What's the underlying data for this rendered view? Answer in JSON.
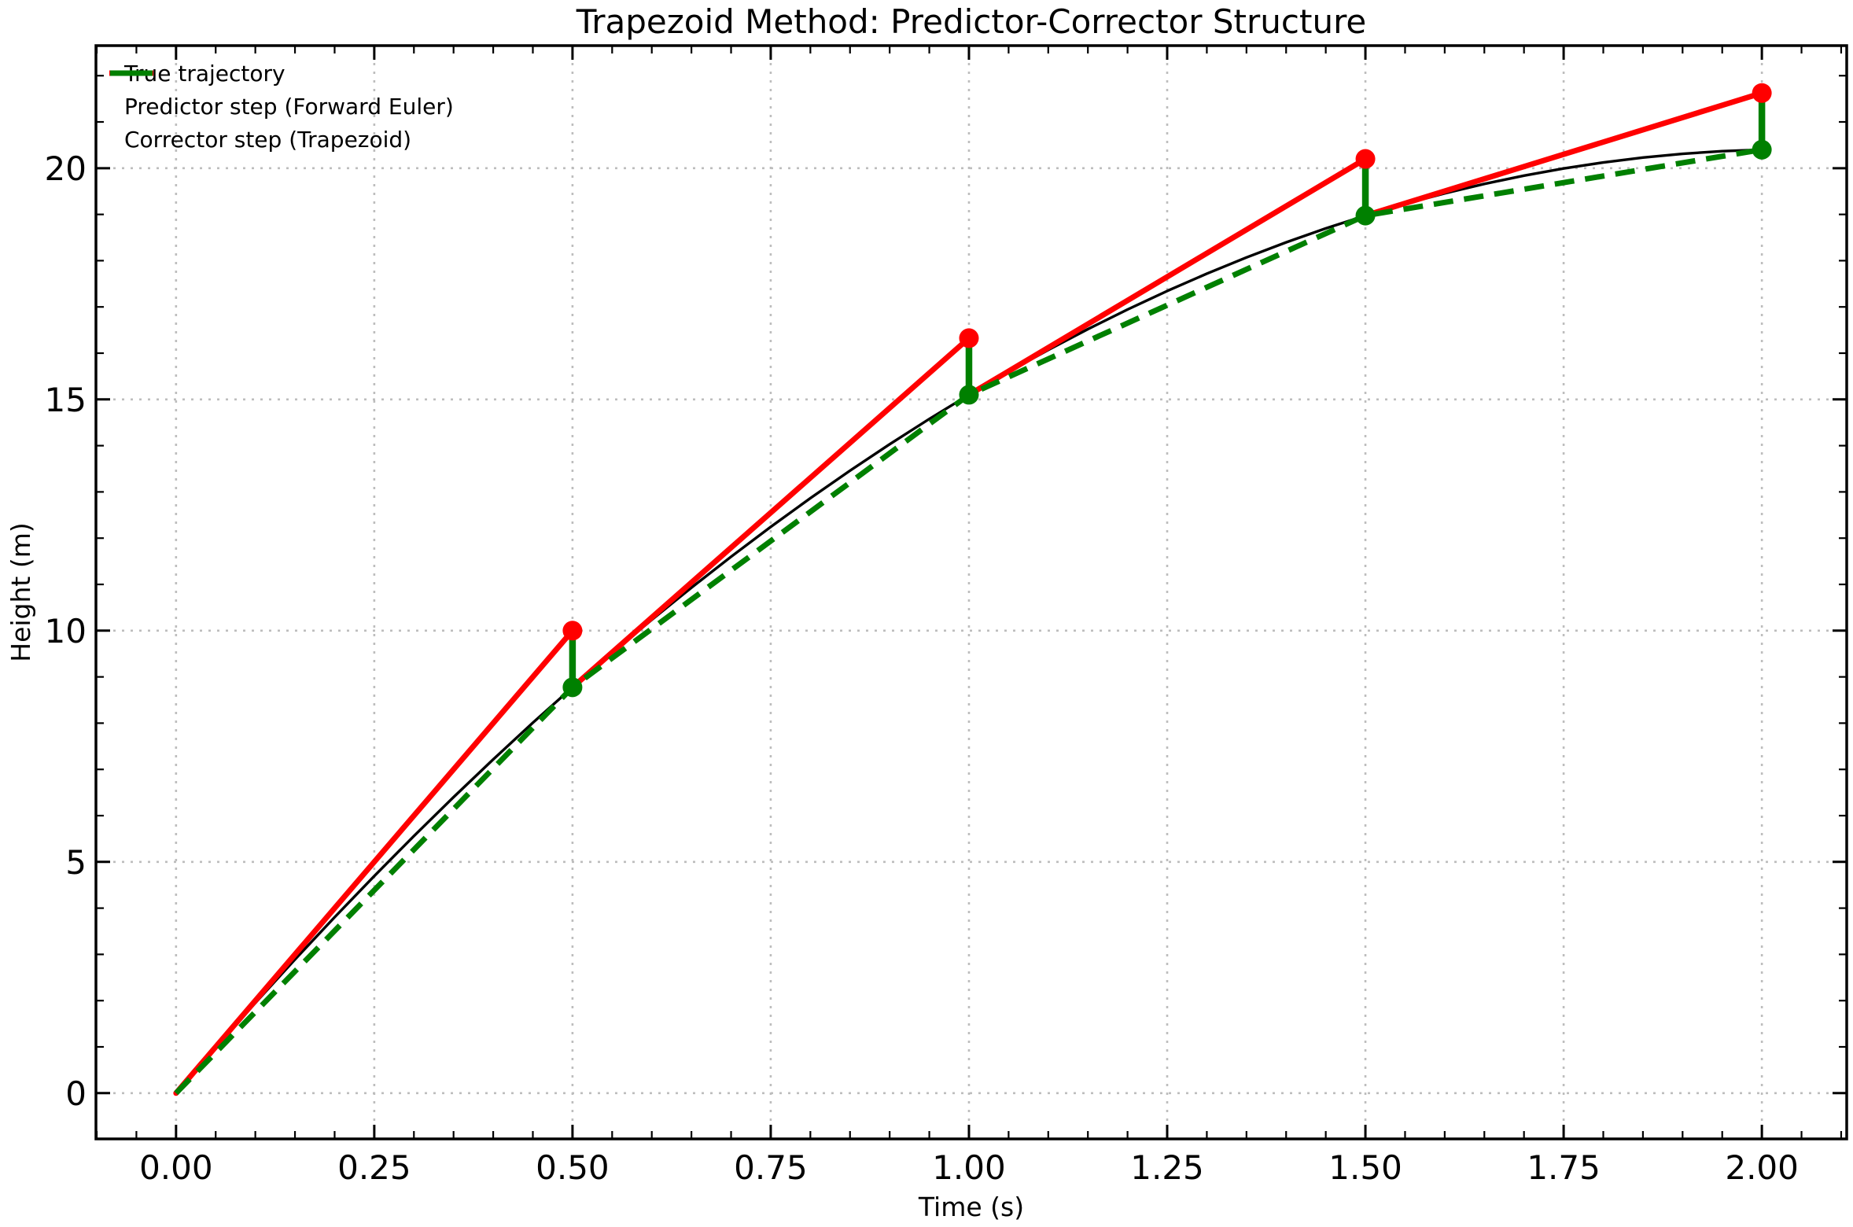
{
  "chart_data": {
    "type": "line",
    "title": "Trapezoid Method: Predictor-Corrector Structure",
    "xlabel": "Time (s)",
    "ylabel": "Height (m)",
    "axes": {
      "xlim": [
        -0.101,
        2.107
      ],
      "ylim": [
        -0.99,
        22.65
      ],
      "x_major_ticks": [
        0,
        0.25,
        0.5,
        0.75,
        1.0,
        1.25,
        1.5,
        1.75,
        2.0
      ],
      "x_major_labels": [
        "0.00",
        "0.25",
        "0.50",
        "0.75",
        "1.00",
        "1.25",
        "1.50",
        "1.75",
        "2.00"
      ],
      "x_minor_step": 0.05,
      "y_major_ticks": [
        0,
        5,
        10,
        15,
        20
      ],
      "y_major_labels": [
        "0",
        "5",
        "10",
        "15",
        "20"
      ],
      "y_minor_step": 1,
      "grid": "dotted major gridlines both axes",
      "tick_direction": "in on all four spines"
    },
    "series": {
      "true_trajectory": {
        "label": "True trajectory",
        "color": "#000000",
        "style": "solid",
        "points": [
          [
            0,
            0
          ],
          [
            0.05,
            0.988
          ],
          [
            0.1,
            1.951
          ],
          [
            0.15,
            2.89
          ],
          [
            0.2,
            3.804
          ],
          [
            0.25,
            4.694
          ],
          [
            0.3,
            5.559
          ],
          [
            0.35,
            6.4
          ],
          [
            0.4,
            7.216
          ],
          [
            0.45,
            8.008
          ],
          [
            0.5,
            8.775
          ],
          [
            0.55,
            9.518
          ],
          [
            0.6,
            10.236
          ],
          [
            0.65,
            10.93
          ],
          [
            0.7,
            11.599
          ],
          [
            0.75,
            12.244
          ],
          [
            0.8,
            12.864
          ],
          [
            0.85,
            13.46
          ],
          [
            0.9,
            14.031
          ],
          [
            0.95,
            14.578
          ],
          [
            1.0,
            15.1
          ],
          [
            1.05,
            15.598
          ],
          [
            1.1,
            16.071
          ],
          [
            1.15,
            16.52
          ],
          [
            1.2,
            16.944
          ],
          [
            1.25,
            17.344
          ],
          [
            1.3,
            17.719
          ],
          [
            1.35,
            18.07
          ],
          [
            1.4,
            18.396
          ],
          [
            1.45,
            18.698
          ],
          [
            1.5,
            18.975
          ],
          [
            1.55,
            19.228
          ],
          [
            1.6,
            19.456
          ],
          [
            1.65,
            19.66
          ],
          [
            1.7,
            19.839
          ],
          [
            1.75,
            19.994
          ],
          [
            1.8,
            20.124
          ],
          [
            1.85,
            20.23
          ],
          [
            1.9,
            20.311
          ],
          [
            1.95,
            20.368
          ],
          [
            2.0,
            20.4
          ]
        ]
      },
      "predictor_segments": {
        "label": "Predictor step (Forward Euler)",
        "color": "#ff0000",
        "style": "solid lines in plot",
        "segments": [
          [
            [
              0,
              0
            ],
            [
              0.5,
              10.0
            ]
          ],
          [
            [
              0.5,
              8.775
            ],
            [
              1.0,
              16.325
            ]
          ],
          [
            [
              1.0,
              15.1
            ],
            [
              1.5,
              20.2
            ]
          ],
          [
            [
              1.5,
              18.975
            ],
            [
              2.0,
              21.625
            ]
          ]
        ]
      },
      "corrector_path": {
        "label": "Corrector step (Trapezoid)",
        "color": "#008000",
        "style": "dashed line in plot",
        "points": [
          [
            0,
            0
          ],
          [
            0.5,
            8.775
          ],
          [
            1.0,
            15.1
          ],
          [
            1.5,
            18.975
          ],
          [
            2.0,
            20.4
          ]
        ]
      },
      "correction_segments": {
        "color": "#008000",
        "style": "solid vertical drop from predictor to corrector",
        "segments": [
          [
            [
              0.5,
              10.0
            ],
            [
              0.5,
              8.775
            ]
          ],
          [
            [
              1.0,
              16.325
            ],
            [
              1.0,
              15.1
            ]
          ],
          [
            [
              1.5,
              20.2
            ],
            [
              1.5,
              18.975
            ]
          ],
          [
            [
              2.0,
              21.625
            ],
            [
              2.0,
              20.4
            ]
          ]
        ]
      },
      "predictor_points": [
        [
          0.5,
          10.0
        ],
        [
          1.0,
          16.325
        ],
        [
          1.5,
          20.2
        ],
        [
          2.0,
          21.625
        ]
      ],
      "corrector_points": [
        [
          0.5,
          8.775
        ],
        [
          1.0,
          15.1
        ],
        [
          1.5,
          18.975
        ],
        [
          2.0,
          20.4
        ]
      ]
    },
    "legend": {
      "position": "upper left",
      "frame": false,
      "entries": [
        {
          "label": "True trajectory",
          "color": "#000000",
          "line_style": "solid"
        },
        {
          "label": "Predictor step (Forward Euler)",
          "color": "#ff0000",
          "line_style": "dashed"
        },
        {
          "label": "Corrector step (Trapezoid)",
          "color": "#008000",
          "line_style": "solid"
        }
      ]
    },
    "marker_radius_px": 12.5
  }
}
